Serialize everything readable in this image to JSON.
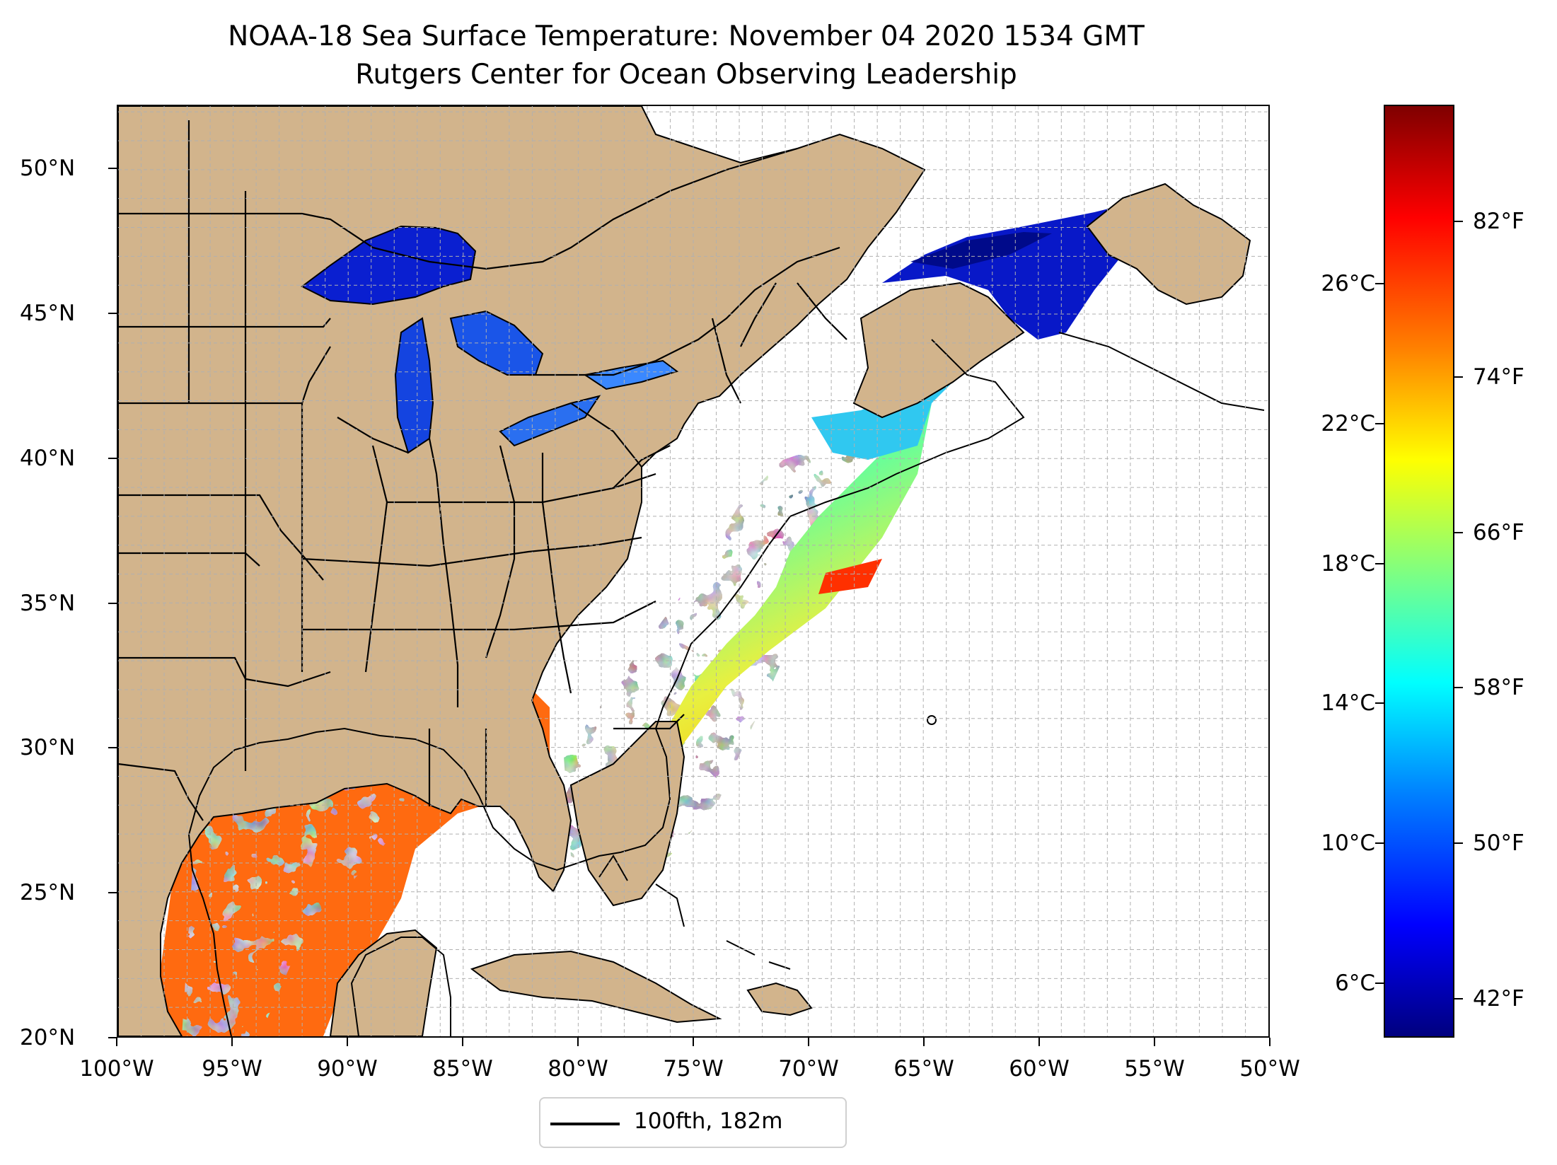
{
  "title": {
    "line1": "NOAA-18 Sea Surface Temperature: November 04 2020 1534 GMT",
    "line2": "Rutgers Center for Ocean Observing Leadership"
  },
  "map": {
    "lon_range": [
      -100,
      -50
    ],
    "lat_range": [
      20,
      52.2
    ],
    "x_ticks": [
      {
        "value": -100,
        "label": "100°W"
      },
      {
        "value": -95,
        "label": "95°W"
      },
      {
        "value": -90,
        "label": "90°W"
      },
      {
        "value": -85,
        "label": "85°W"
      },
      {
        "value": -80,
        "label": "80°W"
      },
      {
        "value": -75,
        "label": "75°W"
      },
      {
        "value": -70,
        "label": "70°W"
      },
      {
        "value": -65,
        "label": "65°W"
      },
      {
        "value": -60,
        "label": "60°W"
      },
      {
        "value": -55,
        "label": "55°W"
      },
      {
        "value": -50,
        "label": "50°W"
      }
    ],
    "y_ticks": [
      {
        "value": 20,
        "label": "20°N"
      },
      {
        "value": 25,
        "label": "25°N"
      },
      {
        "value": 30,
        "label": "30°N"
      },
      {
        "value": 35,
        "label": "35°N"
      },
      {
        "value": 40,
        "label": "40°N"
      },
      {
        "value": 45,
        "label": "45°N"
      },
      {
        "value": 50,
        "label": "50°N"
      }
    ],
    "grid_step_deg": 1,
    "colors": {
      "land": "#d2b48c",
      "ocean_nodata": "#ffffff",
      "inland_lakes": "#9bb8e6",
      "coast": "#000000",
      "grid": "#b0b0b0"
    }
  },
  "colorbar": {
    "colormap": "jet",
    "value_range_F": [
      40,
      88
    ],
    "celsius_ticks": [
      "6°C",
      "10°C",
      "14°C",
      "18°C",
      "22°C",
      "26°C"
    ],
    "celsius_values": [
      6,
      10,
      14,
      18,
      22,
      26
    ],
    "fahrenheit_ticks": [
      "42°F",
      "50°F",
      "58°F",
      "66°F",
      "74°F",
      "82°F"
    ],
    "fahrenheit_values": [
      42,
      50,
      58,
      66,
      74,
      82
    ]
  },
  "legend": {
    "label": "100fth, 182m",
    "line_color": "#000000"
  }
}
